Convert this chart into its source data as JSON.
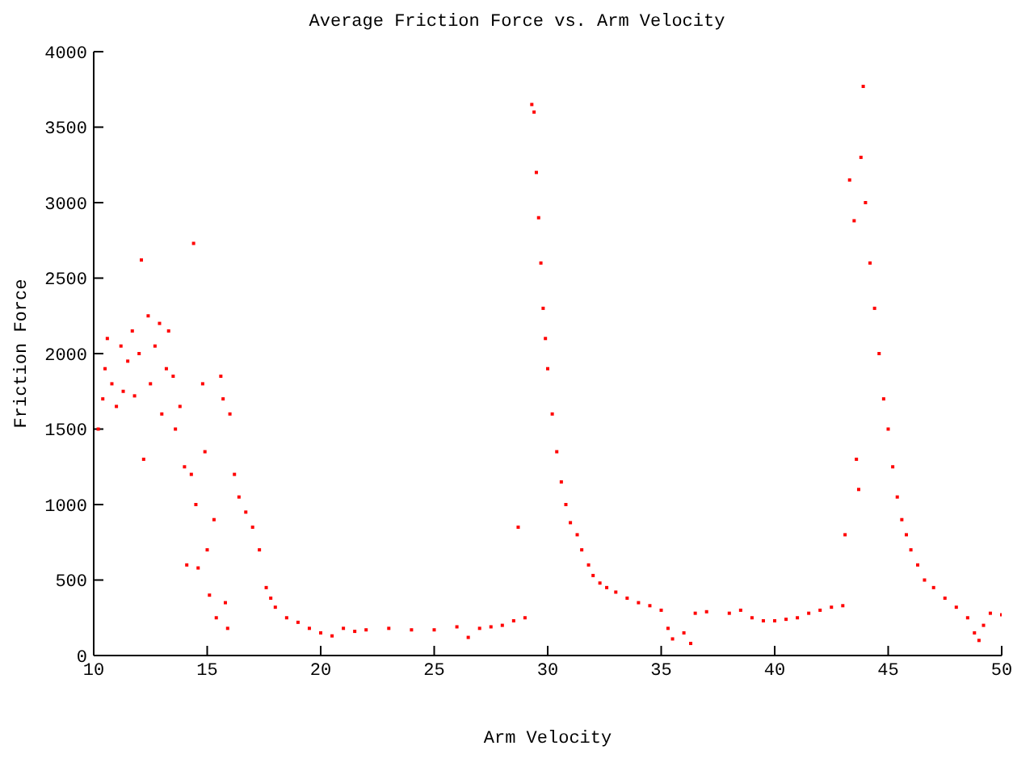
{
  "chart_data": {
    "type": "scatter",
    "title": "Average Friction Force vs. Arm Velocity",
    "xlabel": "Arm Velocity",
    "ylabel": "Friction Force",
    "x": [
      10.2,
      10.4,
      10.5,
      10.6,
      10.8,
      11,
      11.2,
      11.3,
      11.5,
      11.7,
      11.8,
      12,
      12.1,
      12.2,
      12.4,
      12.5,
      12.7,
      12.9,
      13,
      13.2,
      13.3,
      13.5,
      13.6,
      13.8,
      14,
      14.1,
      14.3,
      14.4,
      14.5,
      14.6,
      14.8,
      14.9,
      15,
      15.1,
      15.3,
      15.4,
      15.6,
      15.7,
      15.8,
      15.9,
      16,
      16.2,
      16.4,
      16.7,
      17,
      17.3,
      17.6,
      17.8,
      18,
      18.5,
      19,
      19.5,
      20,
      20.5,
      21,
      21.5,
      22,
      23,
      24,
      25,
      26,
      26.5,
      27,
      27.5,
      28,
      28.5,
      28.7,
      29,
      29.3,
      29.4,
      29.5,
      29.6,
      29.7,
      29.8,
      29.9,
      30,
      30.2,
      30.4,
      30.6,
      30.8,
      31,
      31.3,
      31.5,
      31.8,
      32,
      32.3,
      32.6,
      33,
      33.5,
      34,
      34.5,
      35,
      35.3,
      35.5,
      36,
      36.3,
      36.5,
      37,
      38,
      38.5,
      39,
      39.5,
      40,
      40.5,
      41,
      41.5,
      42,
      42.5,
      43,
      43.1,
      43.3,
      43.5,
      43.6,
      43.7,
      43.8,
      43.9,
      44,
      44.2,
      44.4,
      44.6,
      44.8,
      45,
      45.2,
      45.4,
      45.6,
      45.8,
      46,
      46.3,
      46.6,
      47,
      47.5,
      48,
      48.5,
      48.8,
      49,
      49.2,
      49.5,
      50
    ],
    "series": [
      {
        "color": "#ff0000",
        "values": [
          1500,
          1700,
          1900,
          2100,
          1800,
          1650,
          2050,
          1750,
          1950,
          2150,
          1720,
          2000,
          2620,
          1300,
          2250,
          1800,
          2050,
          2200,
          1600,
          1900,
          2150,
          1850,
          1500,
          1650,
          1250,
          600,
          1200,
          2730,
          1000,
          580,
          1800,
          1350,
          700,
          400,
          900,
          250,
          1850,
          1700,
          350,
          180,
          1600,
          1200,
          1050,
          950,
          850,
          700,
          450,
          380,
          320,
          250,
          220,
          180,
          150,
          130,
          180,
          160,
          170,
          180,
          170,
          170,
          190,
          120,
          180,
          190,
          200,
          230,
          850,
          250,
          3650,
          3600,
          3200,
          2900,
          2600,
          2300,
          2100,
          1900,
          1600,
          1350,
          1150,
          1000,
          880,
          800,
          700,
          600,
          530,
          480,
          450,
          420,
          380,
          350,
          330,
          300,
          180,
          110,
          150,
          80,
          280,
          290,
          280,
          300,
          250,
          230,
          230,
          240,
          250,
          280,
          300,
          320,
          330,
          800,
          3150,
          2880,
          1300,
          1100,
          3300,
          3770,
          3000,
          2600,
          2300,
          2000,
          1700,
          1500,
          1250,
          1050,
          900,
          800,
          700,
          600,
          500,
          450,
          380,
          320,
          250,
          150,
          100,
          200,
          280,
          270
        ]
      }
    ],
    "xlim": [
      10,
      50
    ],
    "xticks": [
      10,
      15,
      20,
      25,
      30,
      35,
      40,
      45,
      50
    ],
    "ylim": [
      0,
      4000
    ],
    "yticks": [
      0,
      500,
      1000,
      1500,
      2000,
      2500,
      3000,
      3500,
      4000
    ],
    "marker": "square",
    "grid": false,
    "legend": false
  }
}
